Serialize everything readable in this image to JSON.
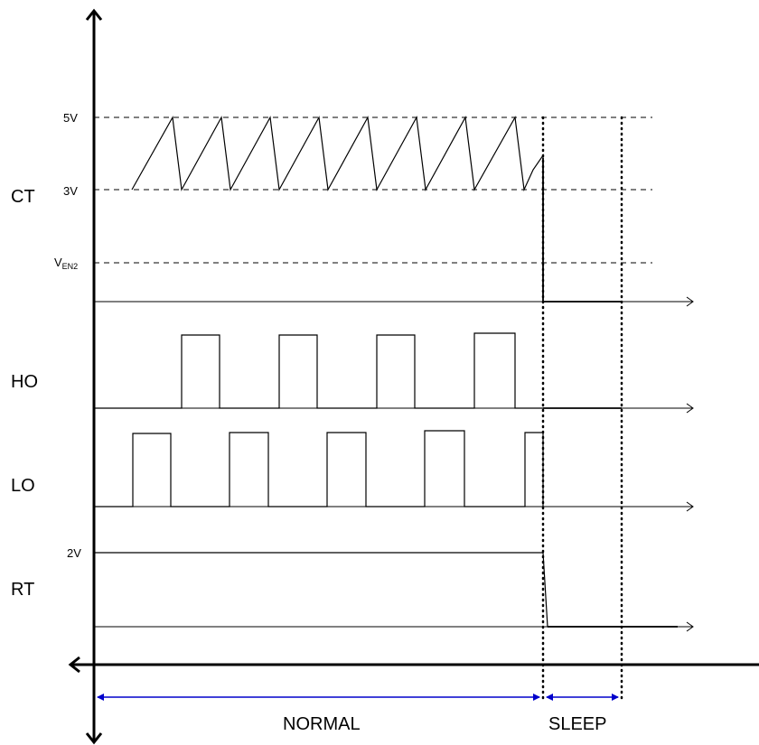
{
  "signals": {
    "ct": "CT",
    "ho": "HO",
    "lo": "LO",
    "rt": "RT"
  },
  "levels": {
    "ct_high": "5V",
    "ct_low": "3V",
    "ven2_main": "V",
    "ven2_sub": "EN2",
    "rt_level": "2V"
  },
  "phases": {
    "normal": "NORMAL",
    "sleep": "SLEEP"
  },
  "colors": {
    "line": "#000000",
    "phase_arrow": "#0000cc"
  }
}
